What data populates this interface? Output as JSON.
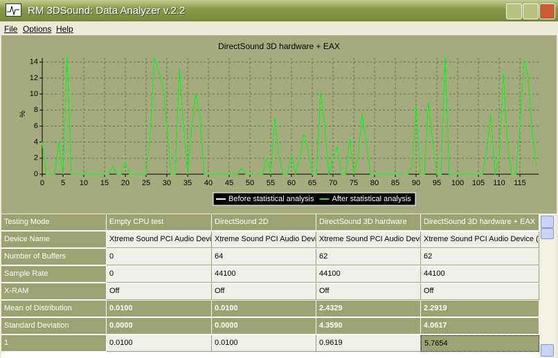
{
  "window": {
    "title": "RM 3DSound: Data Analyzer  v.2.2"
  },
  "menu": [
    "File",
    "Options",
    "Help"
  ],
  "chart_data": {
    "type": "line",
    "title": "DirectSound 3D hardware + EAX",
    "y_label": "%",
    "x": [
      0,
      1,
      2,
      3,
      4,
      5,
      6,
      7,
      8,
      9,
      10,
      11,
      12,
      13,
      14,
      15,
      16,
      17,
      18,
      19,
      20,
      21,
      22,
      23,
      24,
      25,
      26,
      27,
      28,
      29,
      30,
      31,
      32,
      33,
      34,
      35,
      36,
      37,
      38,
      39,
      40,
      41,
      42,
      43,
      44,
      45,
      46,
      47,
      48,
      49,
      50,
      51,
      52,
      53,
      54,
      55,
      56,
      57,
      58,
      59,
      60,
      61,
      62,
      63,
      64,
      65,
      66,
      67,
      68,
      69,
      70,
      71,
      72,
      73,
      74,
      75,
      76,
      77,
      78,
      79,
      80,
      81,
      82,
      83,
      84,
      85,
      86,
      87,
      88,
      89,
      90,
      91,
      92,
      93,
      94,
      95,
      96,
      97,
      98,
      99,
      100,
      101,
      102,
      103,
      104,
      105,
      106,
      107,
      108,
      109,
      110,
      111,
      112,
      113,
      114,
      115,
      116,
      117,
      118,
      119
    ],
    "series": [
      {
        "name": "Before statistical analysis",
        "color": "#ffffff",
        "values": [
          4,
          0,
          0,
          0,
          4,
          0,
          14.8,
          0,
          0,
          0,
          0,
          0,
          0,
          0,
          0,
          0,
          0,
          1,
          0,
          0,
          1.5,
          0,
          0,
          0,
          0,
          0,
          5,
          14.6,
          13,
          11,
          6,
          0,
          0,
          13.2,
          6,
          0,
          6,
          10,
          7,
          0,
          0,
          0,
          0,
          0,
          0,
          0,
          0,
          0,
          0.8,
          0,
          0,
          0,
          0,
          0,
          2,
          0,
          7,
          2,
          0,
          0,
          2.5,
          0,
          2,
          5,
          3,
          0,
          0,
          10.3,
          6,
          0,
          2,
          3.5,
          0,
          0,
          4.5,
          0,
          2,
          7.5,
          4,
          0,
          0,
          0,
          0,
          0,
          0,
          0,
          0,
          0,
          0,
          1,
          8.5,
          0,
          0,
          9,
          4,
          0,
          0,
          14.7,
          0,
          0,
          0,
          0,
          0,
          0,
          0,
          0,
          0,
          3,
          7.5,
          0,
          2,
          12.7,
          4,
          0,
          0,
          6,
          14.3,
          12,
          5,
          1
        ]
      },
      {
        "name": "After statistical analysis",
        "color": "#22e022",
        "values": [
          4,
          0,
          0,
          0,
          4,
          0,
          14.8,
          0,
          0,
          0,
          0,
          0,
          0,
          0,
          0,
          0,
          0,
          1,
          0,
          0,
          1.5,
          0,
          0,
          0,
          0,
          0,
          5,
          14.6,
          13,
          11,
          6,
          0,
          0,
          13.2,
          6,
          0,
          6,
          10,
          7,
          0,
          0,
          0,
          0,
          0,
          0,
          0,
          0,
          0,
          0.8,
          0,
          0,
          0,
          0,
          0,
          2,
          0,
          7,
          2,
          0,
          0,
          2.5,
          0,
          2,
          5,
          3,
          0,
          0,
          10.3,
          6,
          0,
          2,
          3.5,
          0,
          0,
          4.5,
          0,
          2,
          7.5,
          4,
          0,
          0,
          0,
          0,
          0,
          0,
          0,
          0,
          0,
          0,
          1,
          8.5,
          0,
          0,
          9,
          4,
          0,
          0,
          14.7,
          0,
          0,
          0,
          0,
          0,
          0,
          0,
          0,
          0,
          3,
          7.5,
          0,
          2,
          12.7,
          4,
          0,
          0,
          6,
          14.3,
          12,
          5,
          1
        ]
      }
    ],
    "xlim": [
      0,
      119.5
    ],
    "ylim": [
      0,
      14.5
    ],
    "xticks": [
      0,
      5,
      10,
      15,
      20,
      25,
      30,
      35,
      40,
      45,
      50,
      55,
      60,
      65,
      70,
      75,
      80,
      85,
      90,
      95,
      100,
      105,
      110,
      115
    ],
    "yticks": [
      0,
      2,
      4,
      6,
      8,
      10,
      12,
      14
    ],
    "grid": true,
    "legend": "bottom"
  },
  "table": {
    "rows": [
      [
        "Testing Mode",
        "Empty CPU test",
        "DirectSound 2D",
        "DirectSound 3D hardware",
        "DirectSound 3D hardware + EAX"
      ],
      [
        "Device Name",
        "Xtreme Sound PCI Audio Device",
        "Xtreme Sound PCI Audio Device",
        "Xtreme Sound PCI Audio Device",
        "Xtreme Sound PCI Audio Device (cr"
      ],
      [
        "Number of Buffers",
        "0",
        "64",
        "62",
        "62"
      ],
      [
        "Sample Rate",
        "0",
        "44100",
        "44100",
        "44100"
      ],
      [
        "X-RAM",
        "Off",
        "Off",
        "Off",
        "Off"
      ],
      [
        "Mean of Distribution",
        "0.0100",
        "0.0100",
        "2.4329",
        "2.2919"
      ],
      [
        "Standard Deviation",
        "0.0000",
        "0.0000",
        "4.3590",
        "4.0617"
      ],
      [
        "1",
        "0.0100",
        "0.0100",
        "0.9619",
        "5.7654"
      ]
    ]
  }
}
